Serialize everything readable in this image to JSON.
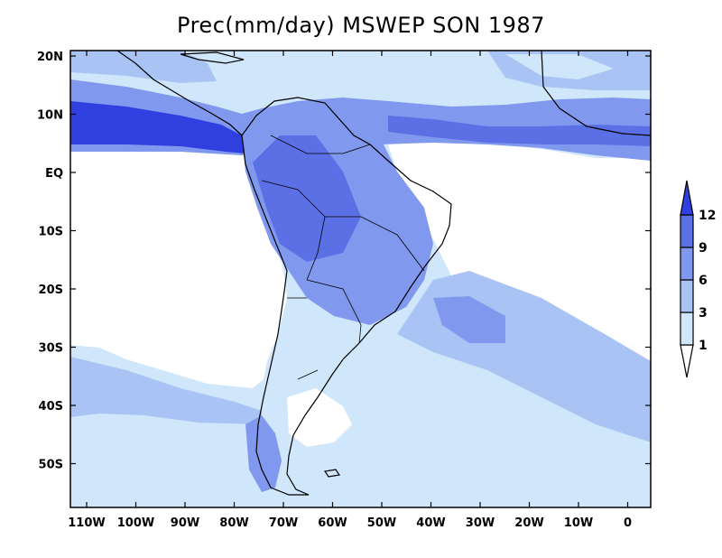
{
  "title": "Prec(mm/day) MSWEP SON 1987",
  "map": {
    "lon_labels": [
      "110W",
      "100W",
      "90W",
      "80W",
      "70W",
      "60W",
      "50W",
      "40W",
      "30W",
      "20W",
      "10W",
      "0"
    ],
    "lat_labels": [
      "20N",
      "10N",
      "EQ",
      "10S",
      "20S",
      "30S",
      "40S",
      "50S"
    ]
  },
  "colorbar": {
    "levels": [
      "1",
      "3",
      "6",
      "9",
      "12"
    ],
    "colors": [
      "#ffffff",
      "#cfe6fb",
      "#a9c4f4",
      "#8099ee",
      "#5c70e6",
      "#3040e0"
    ]
  },
  "colors": {
    "level_1": "#cfe6fb",
    "level_3": "#a9c4f4",
    "level_6": "#8099ee",
    "level_9": "#5c70e6",
    "level_12": "#3040e0",
    "ocean_dry": "#ffffff"
  }
}
